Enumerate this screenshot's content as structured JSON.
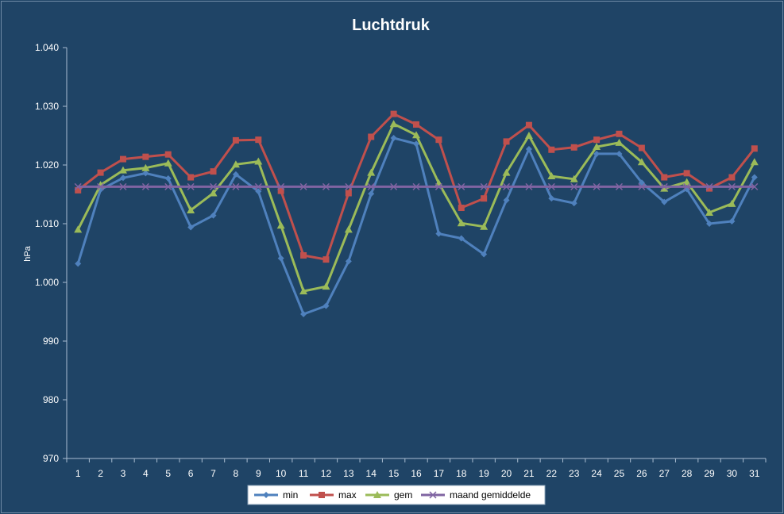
{
  "chart_data": {
    "type": "line",
    "title": "Luchtdruk",
    "xlabel": "",
    "ylabel": "hPa",
    "ylim": [
      970,
      1040
    ],
    "yticks": [
      "970",
      "980",
      "990",
      "1.000",
      "1.010",
      "1.020",
      "1.030",
      "1.040"
    ],
    "ytick_values": [
      970,
      980,
      990,
      1000,
      1010,
      1020,
      1030,
      1040
    ],
    "categories": [
      "1",
      "2",
      "3",
      "4",
      "5",
      "6",
      "7",
      "8",
      "9",
      "10",
      "11",
      "12",
      "13",
      "14",
      "15",
      "16",
      "17",
      "18",
      "19",
      "20",
      "21",
      "22",
      "23",
      "24",
      "25",
      "26",
      "27",
      "28",
      "29",
      "30",
      "31"
    ],
    "grid": false,
    "legend_position": "bottom",
    "series": [
      {
        "name": "min",
        "color": "#4f81bd",
        "marker": "diamond",
        "values": [
          1003.2,
          1015.8,
          1017.8,
          1018.6,
          1017.7,
          1009.4,
          1011.4,
          1018.4,
          1015.5,
          1004.1,
          994.6,
          996.0,
          1003.6,
          1015.1,
          1024.6,
          1023.6,
          1008.3,
          1007.5,
          1004.8,
          1014.0,
          1022.7,
          1014.3,
          1013.5,
          1021.9,
          1021.9,
          1017.0,
          1013.7,
          1015.9,
          1010.0,
          1010.4,
          1017.9
        ]
      },
      {
        "name": "max",
        "color": "#c0504d",
        "marker": "square",
        "values": [
          1015.7,
          1018.7,
          1021.0,
          1021.4,
          1021.8,
          1017.9,
          1018.9,
          1024.2,
          1024.3,
          1015.6,
          1004.6,
          1003.9,
          1015.2,
          1024.8,
          1028.7,
          1026.9,
          1024.3,
          1012.7,
          1014.3,
          1024.0,
          1026.8,
          1022.6,
          1023.0,
          1024.3,
          1025.3,
          1022.9,
          1017.9,
          1018.6,
          1016.0,
          1017.9,
          1022.8
        ]
      },
      {
        "name": "gem",
        "color": "#9bbb59",
        "marker": "triangle",
        "values": [
          1009.0,
          1016.6,
          1019.1,
          1019.5,
          1020.3,
          1012.3,
          1015.2,
          1020.1,
          1020.6,
          1009.7,
          998.5,
          999.3,
          1009.0,
          1018.7,
          1027.0,
          1025.1,
          1016.9,
          1010.1,
          1009.5,
          1018.7,
          1025.0,
          1018.1,
          1017.6,
          1023.1,
          1023.8,
          1020.5,
          1016.0,
          1017.1,
          1011.9,
          1013.4,
          1020.5
        ]
      },
      {
        "name": "maand gemiddelde",
        "color": "#8064a2",
        "marker": "x",
        "values": [
          1016.3,
          1016.3,
          1016.3,
          1016.3,
          1016.3,
          1016.3,
          1016.3,
          1016.3,
          1016.3,
          1016.3,
          1016.3,
          1016.3,
          1016.3,
          1016.3,
          1016.3,
          1016.3,
          1016.3,
          1016.3,
          1016.3,
          1016.3,
          1016.3,
          1016.3,
          1016.3,
          1016.3,
          1016.3,
          1016.3,
          1016.3,
          1016.3,
          1016.3,
          1016.3,
          1016.3
        ]
      }
    ]
  }
}
